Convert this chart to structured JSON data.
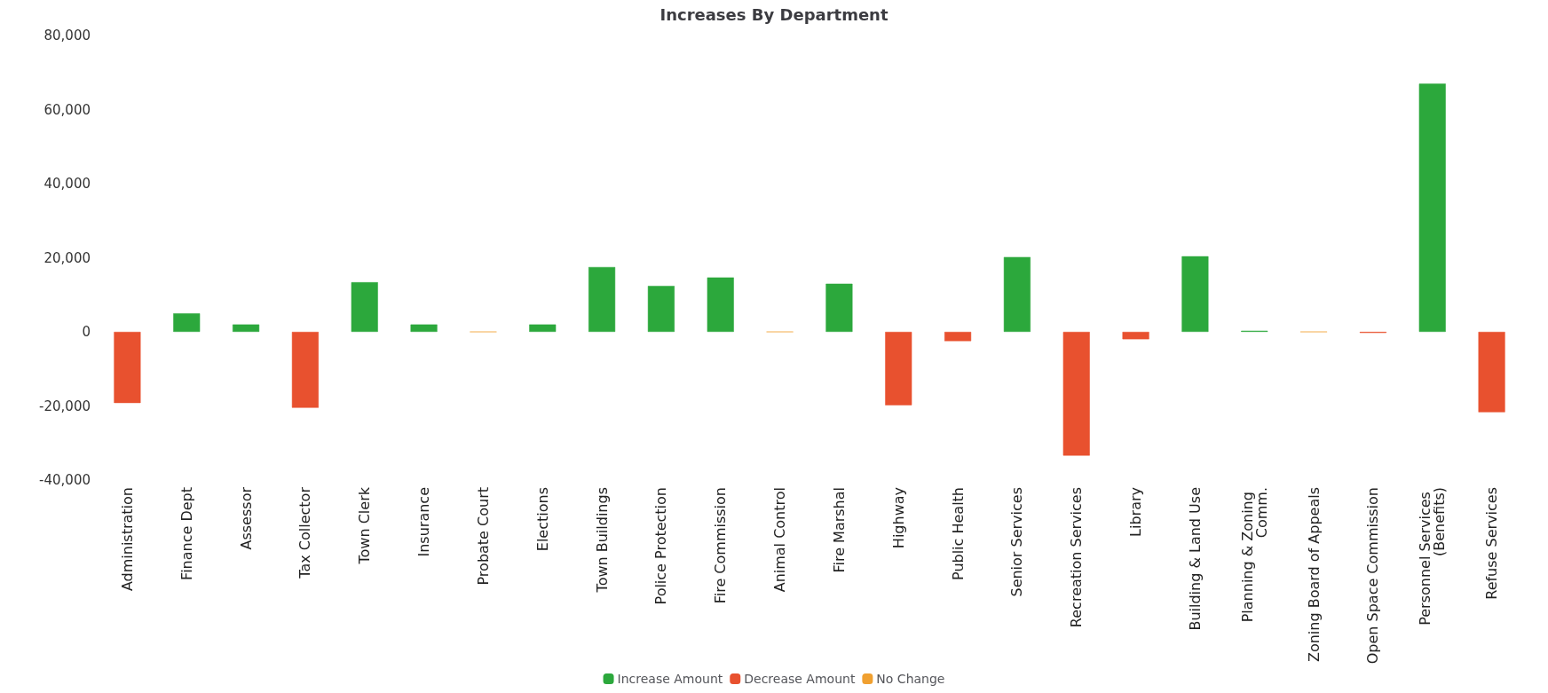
{
  "chart_data": {
    "type": "bar",
    "title": "Increases By Department",
    "stacked": true,
    "categories": [
      "Administration",
      "Finance Dept",
      "Assessor",
      "Tax Collector",
      "Town Clerk",
      "Insurance",
      "Probate Court",
      "Elections",
      "Town Buildings",
      "Police Protection",
      "Fire Commission",
      "Animal Control",
      "Fire Marshal",
      "Highway",
      "Public Health",
      "Senior Services",
      "Recreation Services",
      "Library",
      "Building & Land Use",
      "Planning & Zoning Comm.",
      "Zoning Board of Appeals",
      "Open Space Commission",
      "Personnel Services (Benefits)",
      "Refuse Services"
    ],
    "series": [
      {
        "name": "Increase Amount",
        "color": "#2ca83c",
        "values": [
          null,
          5000,
          2000,
          null,
          13400,
          2000,
          null,
          2000,
          17500,
          12400,
          14700,
          null,
          13000,
          null,
          null,
          20200,
          null,
          null,
          20400,
          300,
          null,
          null,
          67000,
          null
        ]
      },
      {
        "name": "Decrease Amount",
        "color": "#e8512f",
        "values": [
          -19200,
          null,
          null,
          -20500,
          null,
          null,
          null,
          null,
          null,
          null,
          null,
          null,
          null,
          -19800,
          -2500,
          null,
          -33400,
          -2000,
          null,
          null,
          null,
          -300,
          null,
          -21700
        ]
      },
      {
        "name": "No Change",
        "color": "#f0a030",
        "values": [
          null,
          null,
          null,
          null,
          null,
          null,
          0,
          null,
          null,
          null,
          null,
          0,
          null,
          null,
          null,
          null,
          null,
          null,
          null,
          null,
          0,
          null,
          null,
          null
        ]
      }
    ],
    "ylim": [
      -40000,
      80000
    ],
    "yticks": [
      {
        "value": -40000,
        "label": "-40,000"
      },
      {
        "value": -20000,
        "label": "-20,000"
      },
      0,
      {
        "value": 20000,
        "label": "20,000"
      },
      {
        "value": 40000,
        "label": "40,000"
      },
      {
        "value": 60000,
        "label": "60,000"
      },
      {
        "value": 80000,
        "label": "80,000"
      }
    ],
    "grid": false,
    "legend": "bottom"
  }
}
